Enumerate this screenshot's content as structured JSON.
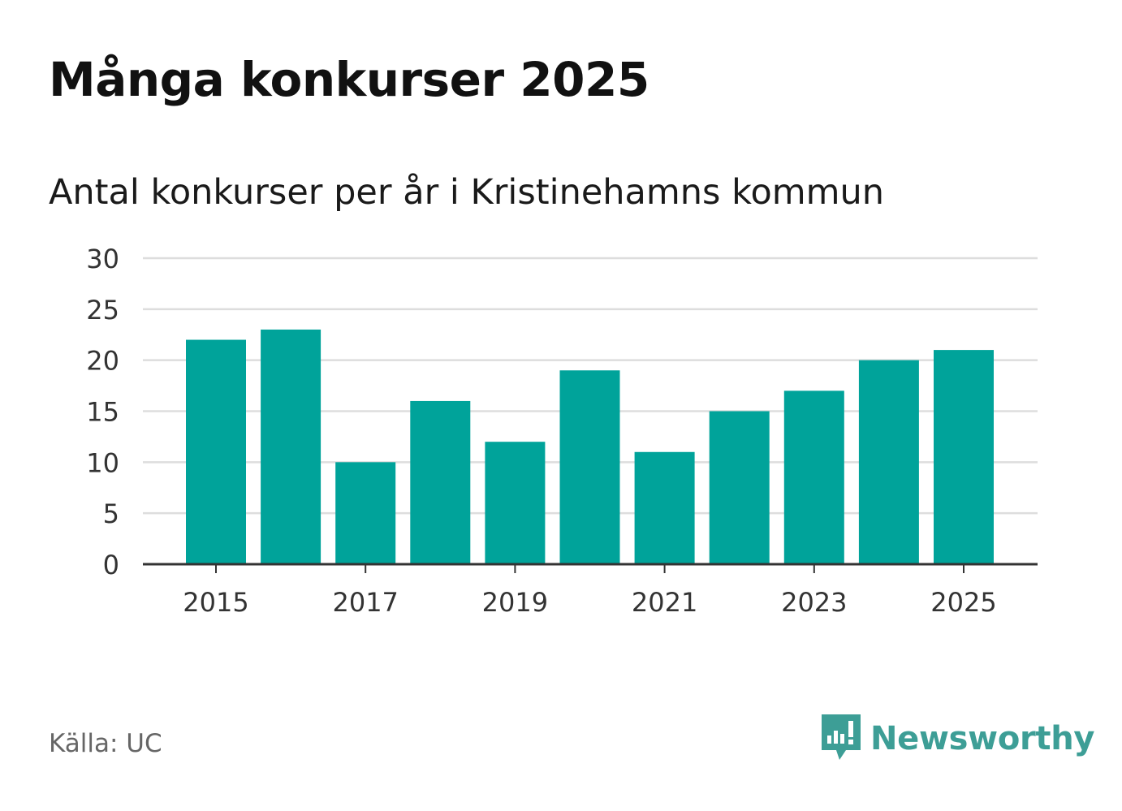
{
  "header": {
    "title": "Många konkurser 2025",
    "subtitle": "Antal konkurser per år i Kristinehamns kommun"
  },
  "footer": {
    "source": "Källa: UC",
    "brand": "Newsworthy",
    "brand_icon": "newsworthy-logo-icon"
  },
  "colors": {
    "bar": "#00a39a",
    "grid": "#dddddd",
    "axis": "#333333",
    "brand": "#3d9e96"
  },
  "chart_data": {
    "type": "bar",
    "title": "Många konkurser 2025",
    "subtitle": "Antal konkurser per år i Kristinehamns kommun",
    "xlabel": "",
    "ylabel": "",
    "categories": [
      2015,
      2016,
      2017,
      2018,
      2019,
      2020,
      2021,
      2022,
      2023,
      2024,
      2025
    ],
    "values": [
      22,
      23,
      10,
      16,
      12,
      19,
      11,
      15,
      17,
      20,
      21
    ],
    "x_tick_labels": [
      "2015",
      "2017",
      "2019",
      "2021",
      "2023",
      "2025"
    ],
    "y_ticks": [
      0,
      5,
      10,
      15,
      20,
      25,
      30
    ],
    "ylim": [
      0,
      30
    ],
    "grid": true,
    "legend": "none"
  }
}
